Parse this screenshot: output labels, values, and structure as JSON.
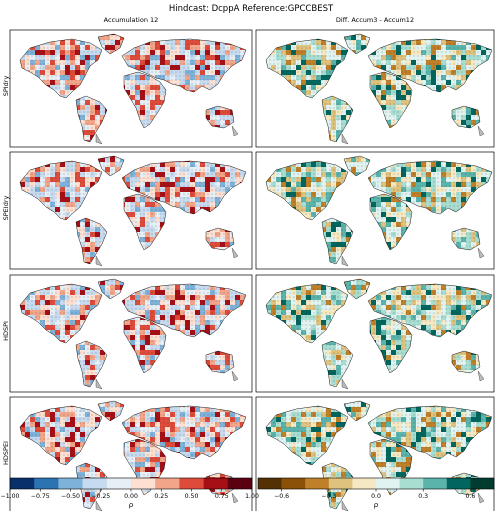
{
  "figure": {
    "suptitle": "Hindcast: DcppA Reference:GPCCBEST",
    "col_titles": [
      "Accumulation 12",
      "Diff. Accum3 - Accum12"
    ],
    "row_labels": [
      "SPIdry",
      "SPEIdry",
      "HDSPI",
      "HDSPEI"
    ]
  },
  "colorbars": {
    "left": {
      "label": "ρ",
      "ticks": [
        "−1.00",
        "−0.75",
        "−0.50",
        "−0.25",
        "0.00",
        "0.25",
        "0.50",
        "0.75",
        "1.00"
      ],
      "colors": [
        "#08306b",
        "#2c73b4",
        "#7fb2d8",
        "#c6dbef",
        "#e6eef6",
        "#fde0d2",
        "#f3a58a",
        "#de4b3a",
        "#a50f15",
        "#5a0010"
      ]
    },
    "right": {
      "label": "ρ",
      "ticks": [
        "−0.6",
        "−0.3",
        "0.0",
        "0.3",
        "0.6"
      ],
      "colors": [
        "#543005",
        "#8c5109",
        "#c08029",
        "#dfc27d",
        "#f6e8c3",
        "#e0f3f0",
        "#a8ddd2",
        "#5ab4ac",
        "#01665e",
        "#003c30"
      ]
    }
  },
  "map_style": {
    "left_colors": [
      "#c6dbef",
      "#e6eef6",
      "#fde0d2",
      "#f3a58a",
      "#de4b3a",
      "#7fb2d8",
      "#a50f15"
    ],
    "right_colors": [
      "#e0f3f0",
      "#a8ddd2",
      "#f6e8c3",
      "#5ab4ac",
      "#dfc27d",
      "#01665e",
      "#c08029"
    ]
  }
}
